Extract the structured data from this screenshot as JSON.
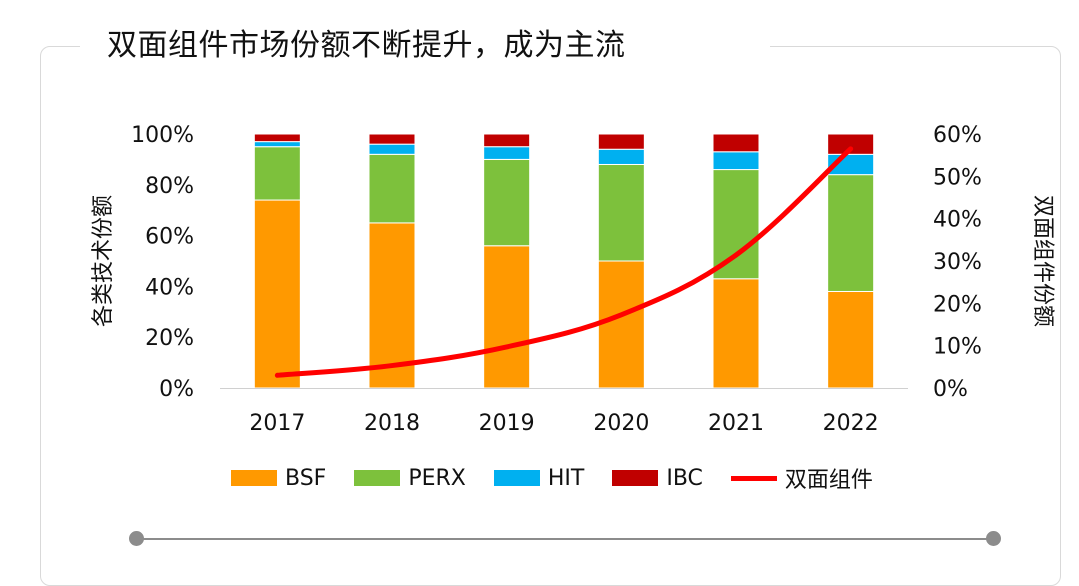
{
  "title": "双面组件市场份额不断提升，成为主流",
  "chart_data": {
    "type": "bar",
    "stacked": true,
    "categories": [
      "2017",
      "2018",
      "2019",
      "2020",
      "2021",
      "2022"
    ],
    "ylabel": "各类技术份额",
    "y2label": "双面组件份额",
    "ylim": [
      0,
      100
    ],
    "y2lim": [
      0,
      60
    ],
    "yticks": [
      "0%",
      "20%",
      "40%",
      "60%",
      "80%",
      "100%"
    ],
    "y2ticks": [
      "0%",
      "10%",
      "20%",
      "30%",
      "40%",
      "50%",
      "60%"
    ],
    "grid": false,
    "legend_position": "bottom",
    "series": [
      {
        "name": "BSF",
        "color": "#ff9900",
        "values": [
          74,
          65,
          56,
          50,
          43,
          38
        ]
      },
      {
        "name": "PERX",
        "color": "#7dc13c",
        "values": [
          21,
          27,
          34,
          38,
          43,
          46
        ]
      },
      {
        "name": "HIT",
        "color": "#00b0f0",
        "values": [
          2,
          4,
          5,
          6,
          7,
          8
        ]
      },
      {
        "name": "IBC",
        "color": "#c00000",
        "values": [
          3,
          4,
          5,
          6,
          7,
          8
        ]
      }
    ],
    "line_series": {
      "name": "双面组件",
      "color": "#ff0000",
      "axis": "right",
      "values": [
        3,
        5.3,
        9.7,
        17.3,
        31.4,
        56.5
      ]
    }
  }
}
